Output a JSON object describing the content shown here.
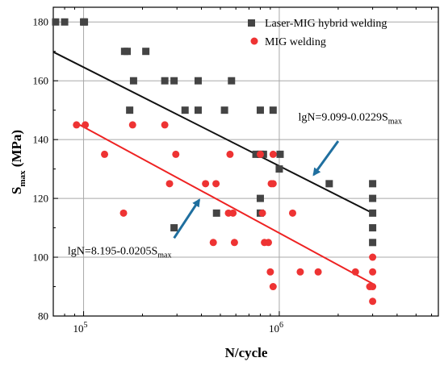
{
  "chart_data": {
    "type": "scatter",
    "title": "",
    "xlabel": "N/cycle",
    "ylabel": "S",
    "ylabel_sub": "max",
    "ylabel_unit": " (MPa)",
    "x_scale": "log",
    "xlim": [
      70000,
      6500000
    ],
    "ylim": [
      80,
      185
    ],
    "grid": true,
    "legend_position": "top-right",
    "x_major_ticks": [
      {
        "value": 100000,
        "base": "10",
        "exp": "5"
      },
      {
        "value": 1000000,
        "base": "10",
        "exp": "6"
      }
    ],
    "y_ticks": [
      80,
      100,
      120,
      140,
      160,
      180
    ],
    "series": [
      {
        "name": "Laser-MIG hybrid welding",
        "marker": "square",
        "color": "#444444",
        "points": [
          [
            72000,
            180
          ],
          [
            80000,
            180
          ],
          [
            100000,
            180
          ],
          [
            101000,
            180
          ],
          [
            162000,
            170
          ],
          [
            167000,
            170
          ],
          [
            208000,
            170
          ],
          [
            180000,
            160
          ],
          [
            260000,
            160
          ],
          [
            290000,
            160
          ],
          [
            385000,
            160
          ],
          [
            570000,
            160
          ],
          [
            172000,
            150
          ],
          [
            330000,
            150
          ],
          [
            385000,
            150
          ],
          [
            525000,
            150
          ],
          [
            800000,
            150
          ],
          [
            930000,
            150
          ],
          [
            760000,
            135
          ],
          [
            800000,
            135
          ],
          [
            830000,
            135
          ],
          [
            1010000,
            135
          ],
          [
            1000000,
            130
          ],
          [
            1800000,
            125
          ],
          [
            3000000,
            125
          ],
          [
            800000,
            120
          ],
          [
            3000000,
            120
          ],
          [
            800000,
            115
          ],
          [
            478000,
            115
          ],
          [
            3000000,
            115
          ],
          [
            290000,
            110
          ],
          [
            3000000,
            110
          ],
          [
            3000000,
            105
          ]
        ]
      },
      {
        "name": "MIG welding",
        "marker": "circle",
        "color": "#ee3333",
        "points": [
          [
            92000,
            145
          ],
          [
            102000,
            145
          ],
          [
            178000,
            145
          ],
          [
            260000,
            145
          ],
          [
            128000,
            135
          ],
          [
            296000,
            135
          ],
          [
            560000,
            135
          ],
          [
            800000,
            135
          ],
          [
            930000,
            135
          ],
          [
            275000,
            125
          ],
          [
            420000,
            125
          ],
          [
            475000,
            125
          ],
          [
            910000,
            125
          ],
          [
            930000,
            125
          ],
          [
            160000,
            115
          ],
          [
            550000,
            115
          ],
          [
            580000,
            115
          ],
          [
            820000,
            115
          ],
          [
            1170000,
            115
          ],
          [
            460000,
            105
          ],
          [
            590000,
            105
          ],
          [
            840000,
            105
          ],
          [
            880000,
            105
          ],
          [
            3000000,
            100
          ],
          [
            900000,
            95
          ],
          [
            1280000,
            95
          ],
          [
            1580000,
            95
          ],
          [
            2450000,
            95
          ],
          [
            3000000,
            95
          ],
          [
            930000,
            90
          ],
          [
            2900000,
            90
          ],
          [
            3000000,
            90
          ],
          [
            3000000,
            85
          ]
        ]
      }
    ],
    "fit_lines": [
      {
        "series": "Laser-MIG hybrid welding",
        "color": "#111111",
        "from": [
          70000,
          169.8
        ],
        "to": [
          3000000,
          115
        ]
      },
      {
        "series": "MIG welding",
        "color": "#ee2222",
        "from": [
          92000,
          145.6
        ],
        "to": [
          3000000,
          91
        ]
      }
    ],
    "annotations": [
      {
        "name": "hybrid-equation",
        "prefix": "lgN=9.099-0.0229S",
        "sub": "max",
        "text_at": [
          1250000,
          146.5
        ],
        "arrow_from": [
          2000000,
          139.5
        ],
        "arrow_to": [
          1500000,
          128
        ]
      },
      {
        "name": "mig-equation",
        "prefix": "lgN=8.195-0.0205S",
        "sub": "max",
        "text_at": [
          83000,
          101
        ],
        "arrow_from": [
          290000,
          106.5
        ],
        "arrow_to": [
          390000,
          119.5
        ]
      }
    ]
  }
}
